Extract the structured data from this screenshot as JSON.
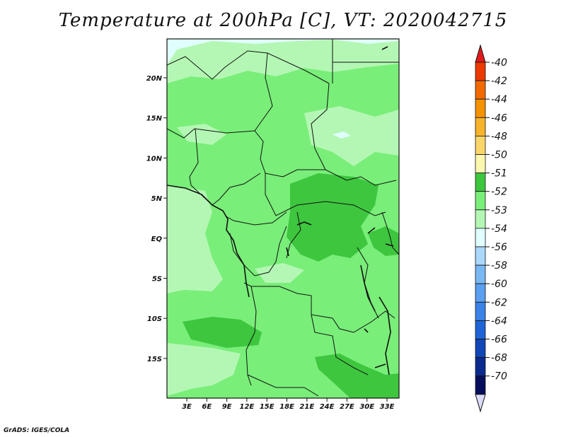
{
  "title": "Temperature at 200hPa [C], VT: 2020042715",
  "credit": "GrADS: IGES/COLA",
  "map": {
    "lat_ticks": [
      "20N",
      "15N",
      "10N",
      "5N",
      "EQ",
      "5S",
      "10S",
      "15S"
    ],
    "lon_ticks": [
      "3E",
      "6E",
      "9E",
      "12E",
      "15E",
      "18E",
      "21E",
      "24E",
      "27E",
      "30E",
      "33E"
    ],
    "fill_colors": {
      "minus_52": "#3ec63e",
      "minus_53": "#79ee79",
      "minus_54": "#b4f7b4",
      "minus_56": "#e0fefe"
    }
  },
  "colorbar": {
    "labels": [
      "-40",
      "-42",
      "-44",
      "-46",
      "-48",
      "-50",
      "-51",
      "-52",
      "-53",
      "-54",
      "-56",
      "-58",
      "-60",
      "-62",
      "-64",
      "-66",
      "-68",
      "-70"
    ],
    "top_arrow_color": "#e11b1b",
    "bottom_arrow_color": "#dcdcf8",
    "colors": [
      "#ec3a00",
      "#f26900",
      "#f59200",
      "#f7b32c",
      "#fad56a",
      "#fdf8b0",
      "#3ec63e",
      "#79ee79",
      "#b4f7b4",
      "#e0fefe",
      "#acd7fa",
      "#7ab8f4",
      "#5a9ff0",
      "#3a82e6",
      "#1e64d6",
      "#1046b6",
      "#0a2a8e",
      "#040e5c"
    ]
  }
}
